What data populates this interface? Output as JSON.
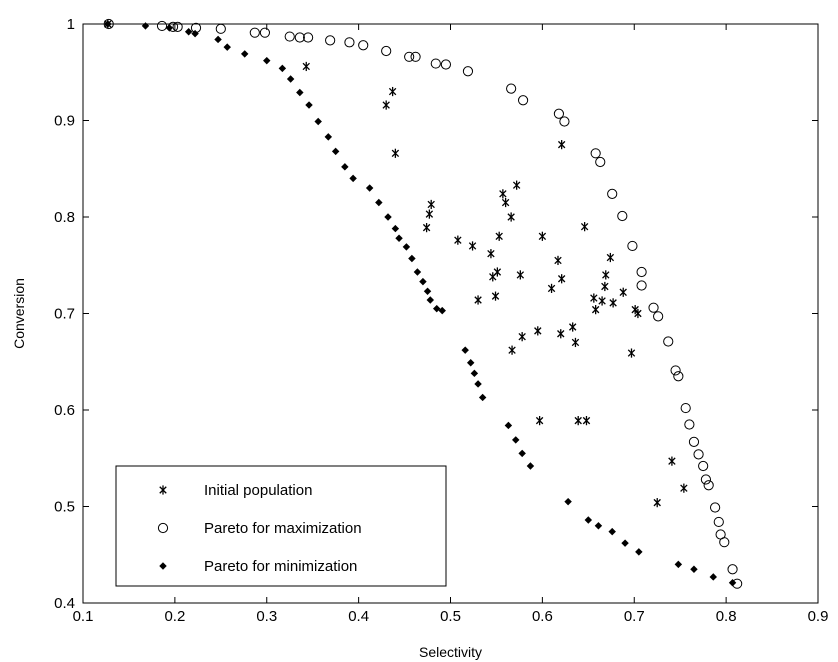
{
  "chart_data": {
    "type": "scatter",
    "title": "",
    "xlabel": "Selectivity",
    "ylabel": "Conversion",
    "xlim": [
      0.1,
      0.9
    ],
    "ylim": [
      0.4,
      1.0
    ],
    "xticks": [
      "0.1",
      "0.2",
      "0.3",
      "0.4",
      "0.5",
      "0.6",
      "0.7",
      "0.8",
      "0.9"
    ],
    "yticks": [
      "0.4",
      "0.5",
      "0.6",
      "0.7",
      "0.8",
      "0.9",
      "1"
    ],
    "grid": false,
    "legend_position": "bottom-left",
    "series": [
      {
        "name": "Initial population",
        "marker": "asterisk",
        "color": "#000000",
        "points": [
          [
            0.127,
            1.0
          ],
          [
            0.343,
            0.956
          ],
          [
            0.437,
            0.93
          ],
          [
            0.43,
            0.916
          ],
          [
            0.44,
            0.866
          ],
          [
            0.621,
            0.875
          ],
          [
            0.572,
            0.833
          ],
          [
            0.557,
            0.824
          ],
          [
            0.479,
            0.813
          ],
          [
            0.56,
            0.815
          ],
          [
            0.477,
            0.803
          ],
          [
            0.566,
            0.8
          ],
          [
            0.474,
            0.789
          ],
          [
            0.646,
            0.79
          ],
          [
            0.6,
            0.78
          ],
          [
            0.553,
            0.78
          ],
          [
            0.508,
            0.776
          ],
          [
            0.524,
            0.77
          ],
          [
            0.674,
            0.758
          ],
          [
            0.544,
            0.762
          ],
          [
            0.617,
            0.755
          ],
          [
            0.551,
            0.743
          ],
          [
            0.546,
            0.738
          ],
          [
            0.576,
            0.74
          ],
          [
            0.621,
            0.736
          ],
          [
            0.669,
            0.74
          ],
          [
            0.668,
            0.728
          ],
          [
            0.61,
            0.726
          ],
          [
            0.688,
            0.722
          ],
          [
            0.549,
            0.718
          ],
          [
            0.656,
            0.716
          ],
          [
            0.53,
            0.714
          ],
          [
            0.665,
            0.713
          ],
          [
            0.677,
            0.711
          ],
          [
            0.658,
            0.704
          ],
          [
            0.701,
            0.704
          ],
          [
            0.704,
            0.7
          ],
          [
            0.633,
            0.686
          ],
          [
            0.595,
            0.682
          ],
          [
            0.62,
            0.679
          ],
          [
            0.578,
            0.676
          ],
          [
            0.636,
            0.67
          ],
          [
            0.567,
            0.662
          ],
          [
            0.697,
            0.659
          ],
          [
            0.597,
            0.589
          ],
          [
            0.639,
            0.589
          ],
          [
            0.648,
            0.589
          ],
          [
            0.741,
            0.547
          ],
          [
            0.754,
            0.519
          ],
          [
            0.725,
            0.504
          ]
        ]
      },
      {
        "name": "Pareto for maximization",
        "marker": "circle",
        "color": "#000000",
        "points": [
          [
            0.128,
            1.0
          ],
          [
            0.186,
            0.998
          ],
          [
            0.198,
            0.997
          ],
          [
            0.203,
            0.997
          ],
          [
            0.223,
            0.996
          ],
          [
            0.25,
            0.995
          ],
          [
            0.287,
            0.991
          ],
          [
            0.298,
            0.991
          ],
          [
            0.325,
            0.987
          ],
          [
            0.336,
            0.986
          ],
          [
            0.345,
            0.986
          ],
          [
            0.369,
            0.983
          ],
          [
            0.39,
            0.981
          ],
          [
            0.405,
            0.978
          ],
          [
            0.43,
            0.972
          ],
          [
            0.455,
            0.966
          ],
          [
            0.462,
            0.966
          ],
          [
            0.484,
            0.959
          ],
          [
            0.495,
            0.958
          ],
          [
            0.519,
            0.951
          ],
          [
            0.566,
            0.933
          ],
          [
            0.579,
            0.921
          ],
          [
            0.618,
            0.907
          ],
          [
            0.624,
            0.899
          ],
          [
            0.658,
            0.866
          ],
          [
            0.663,
            0.857
          ],
          [
            0.676,
            0.824
          ],
          [
            0.687,
            0.801
          ],
          [
            0.698,
            0.77
          ],
          [
            0.708,
            0.743
          ],
          [
            0.708,
            0.729
          ],
          [
            0.721,
            0.706
          ],
          [
            0.726,
            0.697
          ],
          [
            0.737,
            0.671
          ],
          [
            0.745,
            0.641
          ],
          [
            0.748,
            0.635
          ],
          [
            0.756,
            0.602
          ],
          [
            0.76,
            0.585
          ],
          [
            0.765,
            0.567
          ],
          [
            0.77,
            0.554
          ],
          [
            0.775,
            0.542
          ],
          [
            0.778,
            0.528
          ],
          [
            0.781,
            0.522
          ],
          [
            0.788,
            0.499
          ],
          [
            0.792,
            0.484
          ],
          [
            0.794,
            0.471
          ],
          [
            0.798,
            0.463
          ],
          [
            0.807,
            0.435
          ],
          [
            0.812,
            0.42
          ]
        ]
      },
      {
        "name": "Pareto for minimization",
        "marker": "diamond",
        "color": "#000000",
        "points": [
          [
            0.127,
            1.0
          ],
          [
            0.168,
            0.998
          ],
          [
            0.194,
            0.996
          ],
          [
            0.215,
            0.992
          ],
          [
            0.222,
            0.99
          ],
          [
            0.247,
            0.984
          ],
          [
            0.257,
            0.976
          ],
          [
            0.276,
            0.969
          ],
          [
            0.3,
            0.962
          ],
          [
            0.317,
            0.954
          ],
          [
            0.326,
            0.943
          ],
          [
            0.336,
            0.929
          ],
          [
            0.346,
            0.916
          ],
          [
            0.356,
            0.899
          ],
          [
            0.367,
            0.883
          ],
          [
            0.375,
            0.868
          ],
          [
            0.385,
            0.852
          ],
          [
            0.394,
            0.84
          ],
          [
            0.412,
            0.83
          ],
          [
            0.422,
            0.815
          ],
          [
            0.432,
            0.8
          ],
          [
            0.44,
            0.788
          ],
          [
            0.444,
            0.778
          ],
          [
            0.452,
            0.769
          ],
          [
            0.458,
            0.757
          ],
          [
            0.464,
            0.743
          ],
          [
            0.47,
            0.733
          ],
          [
            0.475,
            0.723
          ],
          [
            0.478,
            0.714
          ],
          [
            0.485,
            0.705
          ],
          [
            0.491,
            0.703
          ],
          [
            0.516,
            0.662
          ],
          [
            0.522,
            0.649
          ],
          [
            0.526,
            0.638
          ],
          [
            0.53,
            0.627
          ],
          [
            0.535,
            0.613
          ],
          [
            0.563,
            0.584
          ],
          [
            0.571,
            0.569
          ],
          [
            0.578,
            0.555
          ],
          [
            0.587,
            0.542
          ],
          [
            0.628,
            0.505
          ],
          [
            0.65,
            0.486
          ],
          [
            0.661,
            0.48
          ],
          [
            0.676,
            0.474
          ],
          [
            0.69,
            0.462
          ],
          [
            0.705,
            0.453
          ],
          [
            0.748,
            0.44
          ],
          [
            0.765,
            0.435
          ],
          [
            0.786,
            0.427
          ],
          [
            0.807,
            0.421
          ]
        ]
      }
    ]
  }
}
